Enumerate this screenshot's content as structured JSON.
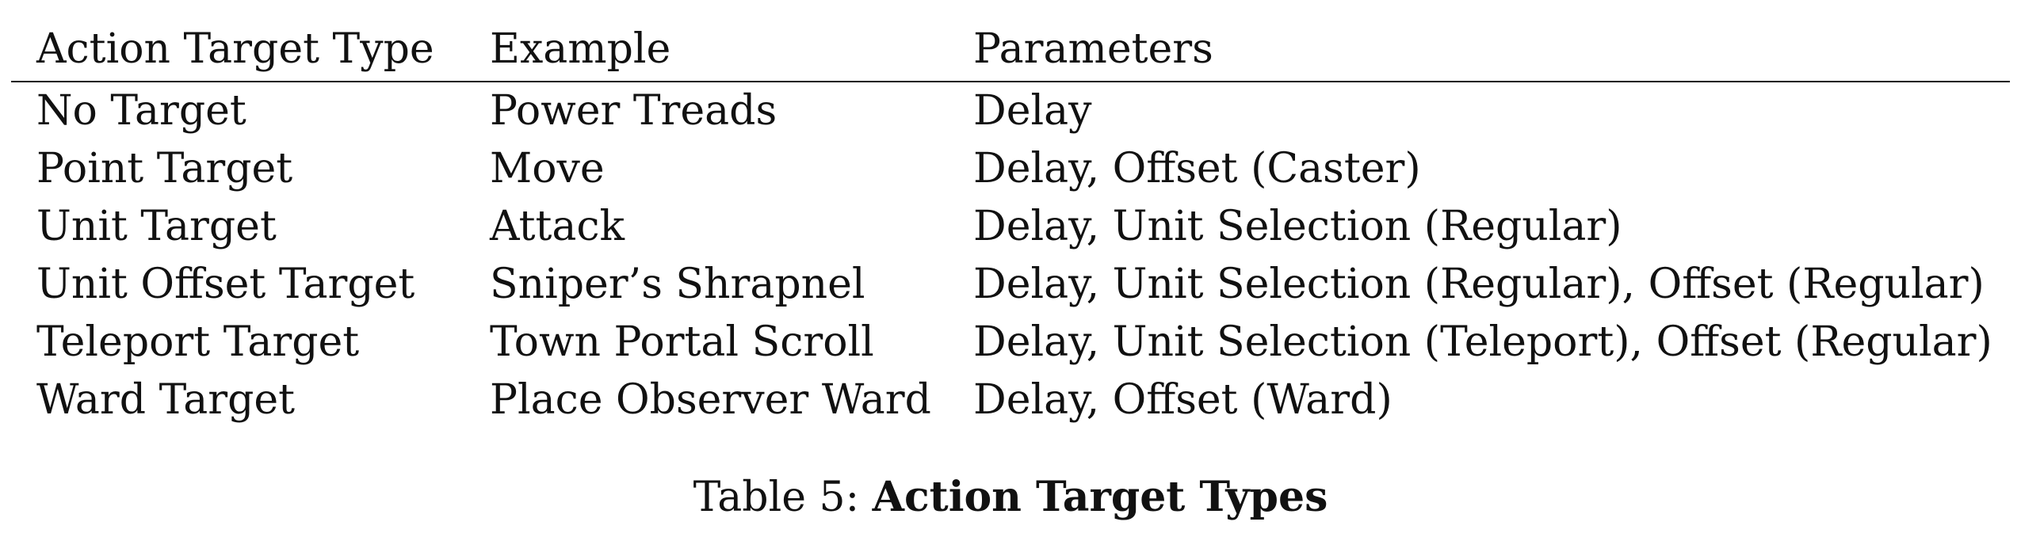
{
  "table": {
    "headers": [
      "Action Target Type",
      "Example",
      "Parameters"
    ],
    "rows": [
      [
        "No Target",
        "Power Treads",
        "Delay"
      ],
      [
        "Point Target",
        "Move",
        "Delay, Offset (Caster)"
      ],
      [
        "Unit Target",
        "Attack",
        "Delay, Unit Selection (Regular)"
      ],
      [
        "Unit Offset Target",
        "Sniper’s Shrapnel",
        "Delay, Unit Selection (Regular), Offset (Regular)"
      ],
      [
        "Teleport Target",
        "Town Portal Scroll",
        "Delay, Unit Selection (Teleport), Offset (Regular)"
      ],
      [
        "Ward Target",
        "Place Observer Ward",
        "Delay, Offset (Ward)"
      ]
    ]
  },
  "caption": {
    "prefix": "Table 5: ",
    "title": "Action Target Types"
  }
}
